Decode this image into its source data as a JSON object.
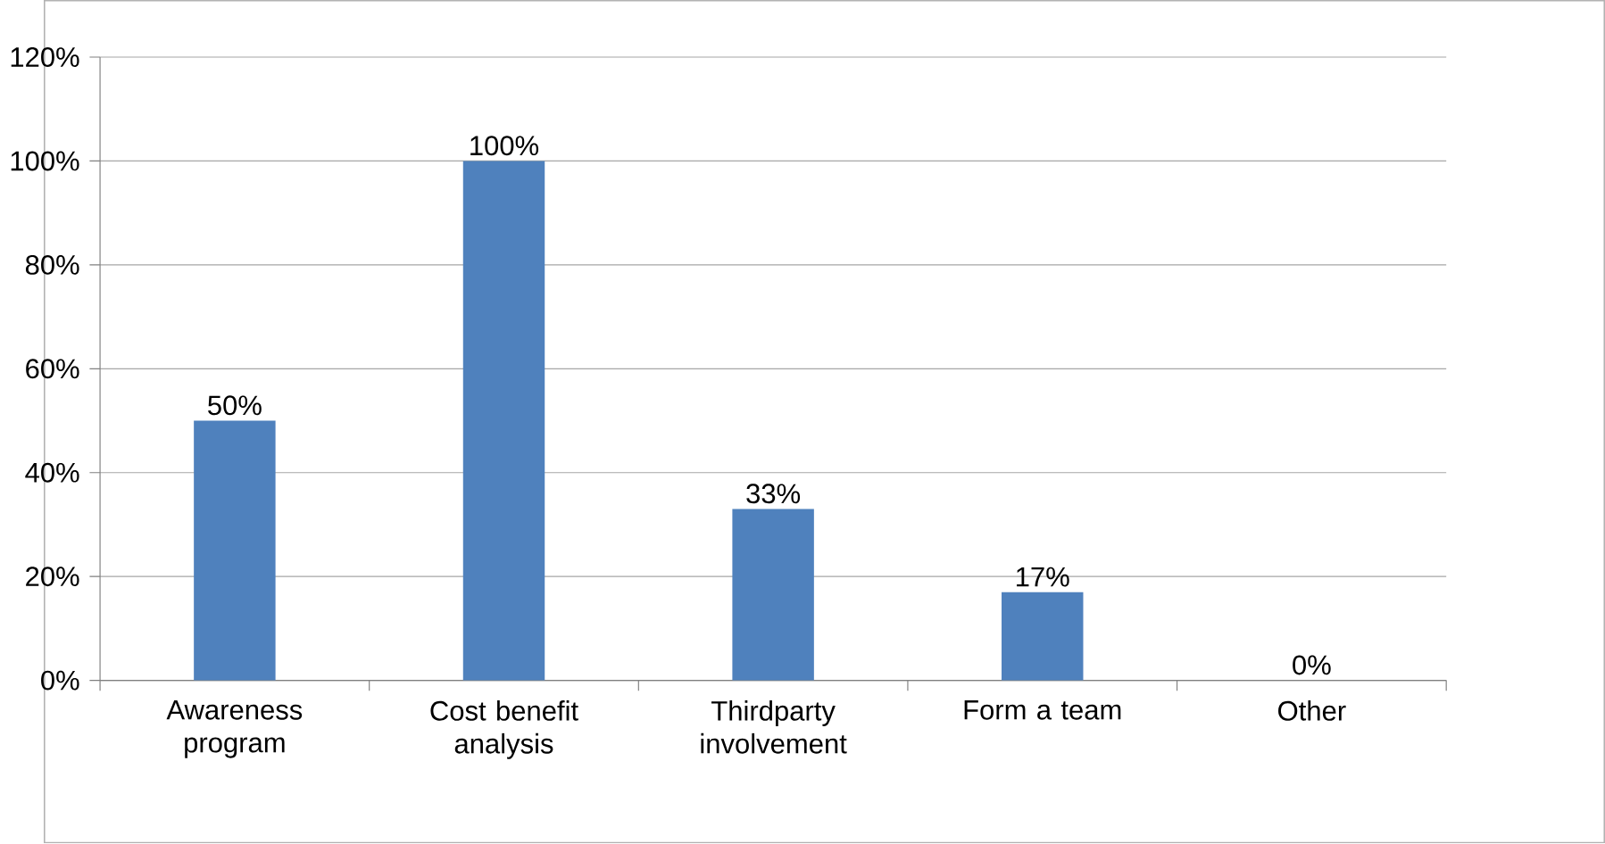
{
  "chart_data": {
    "type": "bar",
    "categories": [
      "Awareness program",
      "Cost benefit analysis",
      "Thirdparty involvement",
      "Form a team",
      "Other"
    ],
    "values": [
      50,
      100,
      33,
      17,
      0
    ],
    "value_labels": [
      "50%",
      "100%",
      "33%",
      "17%",
      "0%"
    ],
    "color": "#4f81bd",
    "ylim": [
      0,
      120
    ],
    "yticks": [
      {
        "value": 0,
        "label": "0%"
      },
      {
        "value": 20,
        "label": "20%"
      },
      {
        "value": 40,
        "label": "40%"
      },
      {
        "value": 60,
        "label": "60%"
      },
      {
        "value": 80,
        "label": "80%"
      },
      {
        "value": 100,
        "label": "100%"
      },
      {
        "value": 120,
        "label": "120%"
      }
    ],
    "grid": "y"
  }
}
